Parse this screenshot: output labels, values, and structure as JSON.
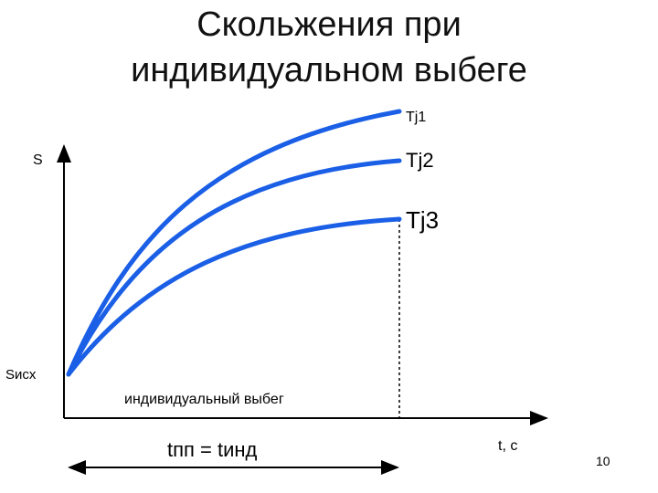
{
  "title": {
    "line1": "Скольжения при",
    "line2": "индивидуальном выбеге"
  },
  "axes": {
    "y_label": "S",
    "x_label": "t, c",
    "origin_label": "Sисх"
  },
  "curves": [
    {
      "label": "Tj1"
    },
    {
      "label": "Tj2"
    },
    {
      "label": "Tj3"
    }
  ],
  "annotations": {
    "phase_label": "индивидуальный выбег",
    "interval_label": "tпп = tинд"
  },
  "page_number": "10",
  "colors": {
    "curve": "#1a5fe6",
    "axis": "#000000",
    "text": "#000000"
  }
}
